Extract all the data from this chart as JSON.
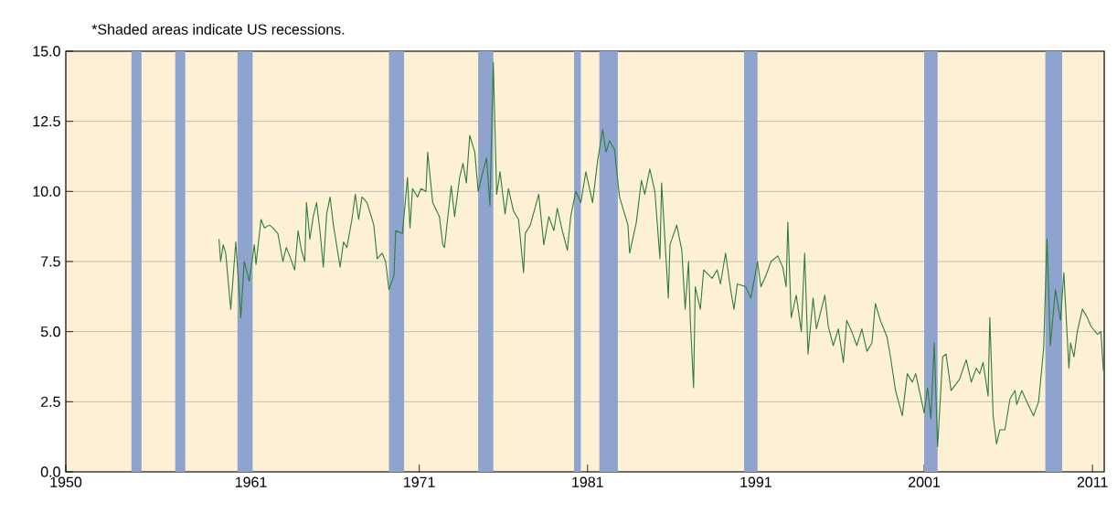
{
  "chart_data": {
    "type": "line",
    "annotations": [
      "*Shaded areas indicate US recessions."
    ],
    "xlim": [
      1950,
      2011.7
    ],
    "xticks": [
      1950,
      1961,
      1971,
      1981,
      1991,
      2001,
      2011
    ],
    "ylim": [
      0,
      15
    ],
    "yticks": [
      {
        "value": 0,
        "label": "0.0"
      },
      {
        "value": 2.5,
        "label": "2.5"
      },
      {
        "value": 5,
        "label": "5.0"
      },
      {
        "value": 7.5,
        "label": "7.5"
      },
      {
        "value": 10,
        "label": "10.0"
      },
      {
        "value": 12.5,
        "label": "12.5"
      },
      {
        "value": 15,
        "label": "15.0"
      }
    ],
    "grid": "y",
    "bands": [
      {
        "axis": "x",
        "from": 1953.9,
        "to": 1954.5,
        "color": "#8fa3cf"
      },
      {
        "axis": "x",
        "from": 1956.5,
        "to": 1957.1,
        "color": "#8fa3cf"
      },
      {
        "axis": "x",
        "from": 1960.2,
        "to": 1961.1,
        "color": "#8fa3cf"
      },
      {
        "axis": "x",
        "from": 1969.2,
        "to": 1970.1,
        "color": "#8fa3cf"
      },
      {
        "axis": "x",
        "from": 1974.5,
        "to": 1975.4,
        "color": "#8fa3cf"
      },
      {
        "axis": "x",
        "from": 1980.2,
        "to": 1980.6,
        "color": "#8fa3cf"
      },
      {
        "axis": "x",
        "from": 1981.7,
        "to": 1982.8,
        "color": "#8fa3cf"
      },
      {
        "axis": "x",
        "from": 1990.3,
        "to": 1991.1,
        "color": "#8fa3cf"
      },
      {
        "axis": "x",
        "from": 2001.0,
        "to": 2001.8,
        "color": "#8fa3cf"
      },
      {
        "axis": "x",
        "from": 2008.2,
        "to": 2009.2,
        "color": "#8fa3cf"
      }
    ],
    "series": [
      {
        "color": "#2e7d3a",
        "x": [
          1959.1,
          1959.2,
          1959.35,
          1959.5,
          1959.8,
          1960.1,
          1960.4,
          1960.6,
          1960.9,
          1961.2,
          1961.3,
          1961.6,
          1961.8,
          1962.1,
          1962.3,
          1962.6,
          1962.9,
          1963.1,
          1963.3,
          1963.6,
          1963.8,
          1964.0,
          1964.2,
          1964.3,
          1964.5,
          1964.7,
          1964.9,
          1965.1,
          1965.3,
          1965.5,
          1965.7,
          1965.9,
          1966.3,
          1966.5,
          1966.7,
          1967.0,
          1967.2,
          1967.4,
          1967.6,
          1967.9,
          1968.1,
          1968.3,
          1968.5,
          1968.8,
          1969.0,
          1969.2,
          1969.5,
          1969.6,
          1970.0,
          1970.3,
          1970.45,
          1970.6,
          1970.9,
          1971.1,
          1971.4,
          1971.5,
          1971.8,
          1972.2,
          1972.4,
          1972.5,
          1972.9,
          1973.1,
          1973.4,
          1973.6,
          1973.8,
          1974.0,
          1974.3,
          1974.5,
          1974.7,
          1975.0,
          1975.2,
          1975.4,
          1975.6,
          1975.8,
          1976.1,
          1976.3,
          1976.6,
          1976.9,
          1977.2,
          1977.3,
          1977.6,
          1978.1,
          1978.4,
          1978.7,
          1979.0,
          1979.2,
          1979.5,
          1979.8,
          1980.0,
          1980.3,
          1980.6,
          1980.9,
          1981.3,
          1981.6,
          1981.9,
          1982.1,
          1982.3,
          1982.6,
          1982.9,
          1983.4,
          1983.5,
          1983.9,
          1984.2,
          1984.4,
          1984.7,
          1985.0,
          1985.3,
          1985.4,
          1985.8,
          1985.9,
          1986.3,
          1986.6,
          1986.8,
          1987.0,
          1987.1,
          1987.3,
          1987.4,
          1987.7,
          1987.9,
          1988.4,
          1988.7,
          1988.9,
          1989.2,
          1989.5,
          1989.7,
          1989.9,
          1990.4,
          1990.7,
          1991.1,
          1991.3,
          1991.6,
          1991.9,
          1992.3,
          1992.6,
          1992.8,
          1992.9,
          1993.1,
          1993.4,
          1993.7,
          1993.9,
          1994.1,
          1994.4,
          1994.6,
          1995.1,
          1995.3,
          1995.6,
          1995.9,
          1996.2,
          1996.4,
          1996.7,
          1997.0,
          1997.3,
          1997.6,
          1997.9,
          1998.1,
          1998.4,
          1998.8,
          1999.0,
          1999.3,
          1999.7,
          2000.0,
          2000.3,
          2000.5,
          2001.0,
          2001.2,
          2001.4,
          2001.6,
          2001.8,
          2002.1,
          2002.3,
          2002.6,
          2003.1,
          2003.5,
          2003.8,
          2004.1,
          2004.3,
          2004.5,
          2004.8,
          2004.9,
          2005.1,
          2005.3,
          2005.5,
          2005.8,
          2006.1,
          2006.4,
          2006.5,
          2006.8,
          2007.1,
          2007.5,
          2007.8,
          2008.1,
          2008.3,
          2008.5,
          2008.8,
          2009.1,
          2009.3,
          2009.6,
          2009.7,
          2009.9,
          2010.1,
          2010.4,
          2010.7,
          2010.9,
          2011.3,
          2011.5,
          2011.65
        ],
        "values": [
          8.3,
          7.5,
          8.1,
          7.8,
          5.8,
          8.2,
          5.5,
          7.5,
          6.8,
          8.1,
          7.4,
          9.0,
          8.7,
          8.8,
          8.7,
          8.5,
          7.5,
          8.0,
          7.7,
          7.2,
          8.6,
          7.9,
          7.5,
          9.6,
          8.3,
          9.1,
          9.6,
          8.6,
          7.3,
          9.2,
          9.8,
          8.8,
          7.3,
          8.2,
          8.0,
          9.0,
          9.9,
          9.0,
          9.8,
          9.6,
          9.2,
          8.8,
          7.6,
          7.8,
          7.5,
          6.5,
          7.0,
          8.6,
          8.5,
          10.5,
          8.7,
          10.1,
          9.8,
          10.1,
          10.0,
          11.4,
          9.6,
          9.1,
          8.1,
          8.0,
          10.2,
          9.1,
          10.5,
          11.0,
          10.3,
          12.0,
          11.4,
          10.0,
          10.5,
          11.2,
          9.5,
          14.6,
          9.9,
          10.7,
          9.2,
          10.1,
          9.3,
          9.0,
          7.1,
          8.5,
          8.8,
          9.9,
          8.1,
          9.1,
          8.6,
          9.4,
          8.6,
          7.9,
          9.1,
          10.0,
          9.6,
          10.7,
          9.6,
          11.1,
          12.2,
          11.4,
          11.8,
          11.5,
          9.8,
          8.8,
          7.8,
          8.9,
          10.4,
          9.9,
          10.8,
          10.0,
          7.6,
          10.3,
          6.2,
          8.1,
          8.8,
          7.9,
          5.8,
          7.5,
          5.5,
          3.0,
          6.6,
          5.8,
          7.2,
          6.9,
          7.2,
          6.7,
          7.8,
          6.5,
          5.8,
          6.7,
          6.6,
          6.2,
          7.5,
          6.6,
          7.0,
          7.5,
          7.7,
          7.3,
          6.6,
          8.9,
          5.5,
          6.3,
          5.0,
          7.8,
          4.2,
          6.2,
          5.1,
          6.3,
          5.2,
          4.5,
          5.1,
          3.9,
          5.4,
          5.0,
          4.5,
          5.1,
          4.3,
          4.6,
          6.0,
          5.4,
          4.8,
          4.1,
          2.9,
          2.0,
          3.5,
          3.2,
          3.5,
          2.1,
          3.0,
          1.9,
          4.6,
          0.9,
          4.1,
          4.2,
          2.9,
          3.3,
          4.0,
          3.2,
          3.7,
          3.5,
          3.9,
          2.7,
          5.5,
          2.0,
          1.0,
          1.5,
          1.5,
          2.6,
          2.9,
          2.4,
          2.9,
          2.5,
          2.0,
          2.5,
          4.4,
          8.3,
          4.5,
          6.5,
          5.4,
          7.1,
          3.7,
          4.6,
          4.1,
          5.0,
          5.8,
          5.5,
          5.2,
          4.9,
          5.0,
          3.6
        ]
      }
    ]
  }
}
